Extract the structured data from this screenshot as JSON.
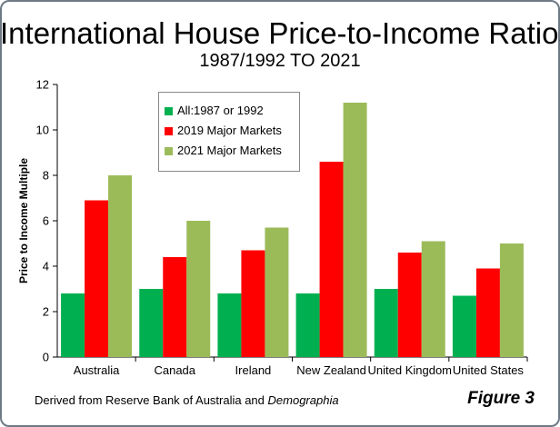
{
  "header": {
    "title": "International House Price-to-Income Ratios",
    "subtitle": "1987/1992 TO 2021"
  },
  "footer": {
    "source_prefix": "Derived from Reserve Bank of Australia and ",
    "source_italic": "Demographia",
    "figure_label": "Figure 3"
  },
  "colors": {
    "series_1987": "#00b050",
    "series_2019": "#ff0000",
    "series_2021": "#9bbb59",
    "frame": "#6d7a86"
  },
  "chart_data": {
    "type": "bar",
    "title": "International House Price-to-Income Ratios",
    "subtitle": "1987/1992 TO 2021",
    "xlabel": "",
    "ylabel": "Price to Income Multiple",
    "ylim": [
      0,
      12
    ],
    "yticks": [
      0,
      2,
      4,
      6,
      8,
      10,
      12
    ],
    "grid": false,
    "legend_position": "top-left",
    "categories": [
      "Australia",
      "Canada",
      "Ireland",
      "New Zealand",
      "United Kingdom",
      "United States"
    ],
    "series": [
      {
        "name": "All:1987 or 1992",
        "color": "#00b050",
        "values": [
          2.8,
          3.0,
          2.8,
          2.8,
          3.0,
          2.7
        ]
      },
      {
        "name": "2019 Major Markets",
        "color": "#ff0000",
        "values": [
          6.9,
          4.4,
          4.7,
          8.6,
          4.6,
          3.9
        ]
      },
      {
        "name": "2021 Major Markets",
        "color": "#9bbb59",
        "values": [
          8.0,
          6.0,
          5.7,
          11.2,
          5.1,
          5.0
        ]
      }
    ]
  }
}
